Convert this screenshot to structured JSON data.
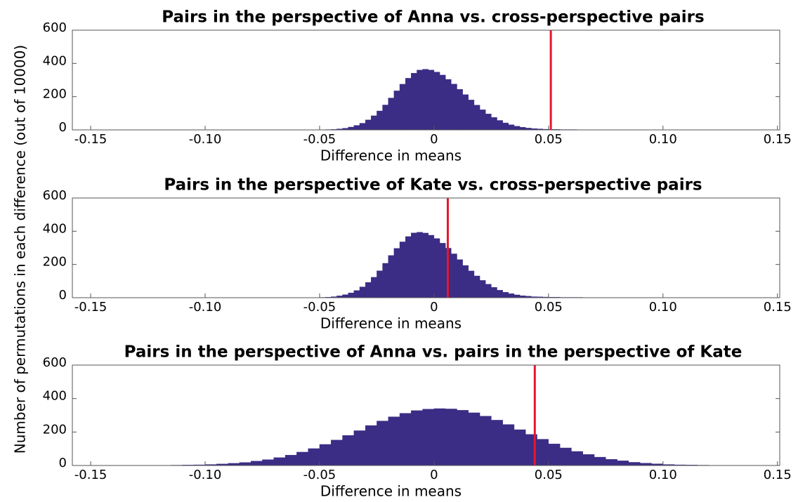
{
  "ylabel": "Number of permutations in each difference (out of 10000)",
  "chart_data": [
    {
      "type": "histogram",
      "title": "Pairs in the perspective of Anna vs. cross-perspective pairs",
      "xlabel": "Difference in means",
      "color": "#3b2c85",
      "bins": [
        -0.05,
        -0.0475,
        -0.045,
        -0.0425,
        -0.04,
        -0.0375,
        -0.035,
        -0.0325,
        -0.03,
        -0.0275,
        -0.025,
        -0.0225,
        -0.02,
        -0.0175,
        -0.015,
        -0.0125,
        -0.01,
        -0.0075,
        -0.005,
        -0.0025,
        0,
        0.0025,
        0.005,
        0.0075,
        0.01,
        0.0125,
        0.015,
        0.0175,
        0.02,
        0.0225,
        0.025,
        0.0275,
        0.03,
        0.0325,
        0.035,
        0.0375,
        0.04,
        0.0425,
        0.045,
        0.0475,
        0.05,
        0.0525,
        0.055,
        0.0575,
        0.06,
        0.0625,
        0.065,
        0.0675,
        0.07,
        0.0725,
        0.075,
        0.0775,
        0.08,
        0.0825,
        0.085,
        0.0875,
        0.09,
        0.0925,
        0.095,
        0.0975,
        0.1,
        0.1025,
        0.105,
        0.1075,
        0.11,
        0.1125,
        0.115,
        0.1175,
        0.12
      ],
      "values": [
        1,
        2,
        3,
        6,
        10,
        17,
        27,
        40,
        60,
        85,
        114,
        150,
        192,
        235,
        275,
        311,
        341,
        360,
        365,
        360,
        348,
        330,
        304,
        276,
        244,
        212,
        180,
        149,
        121,
        96,
        75,
        57,
        42,
        31,
        22,
        16,
        11,
        8,
        6,
        4,
        3,
        3,
        2,
        2,
        2,
        1,
        1,
        1,
        1,
        1,
        1,
        1,
        0,
        0,
        0,
        0,
        0,
        0,
        0,
        0,
        0,
        0,
        0,
        0,
        0,
        0,
        0,
        0
      ],
      "reference_line": {
        "x": 0.051,
        "color": "#e3182d"
      },
      "xlim": [
        -0.158,
        0.151
      ],
      "ylim": [
        0,
        600
      ],
      "xticks": [
        -0.15,
        {
          "value": -0.1,
          "label": "-0.10"
        },
        -0.05,
        0,
        0.05,
        {
          "value": 0.1,
          "label": "0.10"
        },
        0.15
      ],
      "yticks": [
        0,
        200,
        400,
        600
      ]
    },
    {
      "type": "histogram",
      "title": "Pairs in the perspective of Kate vs. cross-perspective pairs",
      "xlabel": "Difference in means",
      "color": "#3b2c85",
      "bins": [
        -0.05,
        -0.0475,
        -0.045,
        -0.0425,
        -0.04,
        -0.0375,
        -0.035,
        -0.0325,
        -0.03,
        -0.0275,
        -0.025,
        -0.0225,
        -0.02,
        -0.0175,
        -0.015,
        -0.0125,
        -0.01,
        -0.0075,
        -0.005,
        -0.0025,
        0,
        0.0025,
        0.005,
        0.0075,
        0.01,
        0.0125,
        0.015,
        0.0175,
        0.02,
        0.0225,
        0.025,
        0.0275,
        0.03,
        0.0325,
        0.035,
        0.0375,
        0.04,
        0.0425,
        0.045,
        0.0475,
        0.05,
        0.0525,
        0.055,
        0.0575,
        0.06,
        0.0625,
        0.065,
        0.0675,
        0.07,
        0.0725,
        0.075,
        0.0775,
        0.08,
        0.0825,
        0.085,
        0.0875,
        0.09,
        0.0925,
        0.095,
        0.0975,
        0.1,
        0.1025,
        0.105,
        0.1075,
        0.11,
        0.1125,
        0.115,
        0.1175,
        0.12
      ],
      "values": [
        2,
        3,
        6,
        11,
        18,
        29,
        43,
        65,
        92,
        123,
        162,
        207,
        254,
        297,
        336,
        368,
        390,
        394,
        389,
        376,
        356,
        328,
        298,
        264,
        229,
        194,
        161,
        131,
        104,
        81,
        62,
        45,
        33,
        24,
        17,
        12,
        9,
        6,
        5,
        4,
        3,
        3,
        2,
        2,
        2,
        2,
        1,
        1,
        1,
        1,
        1,
        1,
        1,
        1,
        1,
        1,
        1,
        1,
        1,
        1,
        1,
        1,
        1,
        0,
        0,
        0,
        0,
        0
      ],
      "reference_line": {
        "x": 0.006,
        "color": "#e3182d"
      },
      "xlim": [
        -0.158,
        0.151
      ],
      "ylim": [
        0,
        600
      ],
      "xticks": [
        -0.15,
        {
          "value": -0.1,
          "label": "-0.10"
        },
        -0.05,
        0,
        0.05,
        {
          "value": 0.1,
          "label": "0.10"
        },
        0.15
      ],
      "yticks": [
        0,
        200,
        400,
        600
      ]
    },
    {
      "type": "histogram",
      "title": "Pairs in the perspective of Anna vs. pairs in the perspective of Kate",
      "xlabel": "Difference in means",
      "color": "#3b2c85",
      "bins": [
        -0.12,
        -0.115,
        -0.11,
        -0.105,
        -0.1,
        -0.095,
        -0.09,
        -0.085,
        -0.08,
        -0.075,
        -0.07,
        -0.065,
        -0.06,
        -0.055,
        -0.05,
        -0.045,
        -0.04,
        -0.035,
        -0.03,
        -0.025,
        -0.02,
        -0.015,
        -0.01,
        -0.005,
        0,
        0.005,
        0.01,
        0.015,
        0.02,
        0.025,
        0.03,
        0.035,
        0.04,
        0.045,
        0.05,
        0.055,
        0.06,
        0.065,
        0.07,
        0.075,
        0.08,
        0.085,
        0.09,
        0.095,
        0.1,
        0.105,
        0.11,
        0.115,
        0.12
      ],
      "values": [
        1,
        2,
        3,
        4,
        6,
        9,
        13,
        18,
        26,
        35,
        47,
        62,
        80,
        101,
        126,
        152,
        180,
        208,
        239,
        266,
        291,
        312,
        328,
        337,
        340,
        338,
        330,
        315,
        295,
        271,
        245,
        214,
        186,
        157,
        129,
        105,
        84,
        66,
        50,
        37,
        28,
        19,
        14,
        10,
        6,
        4,
        3,
        2
      ],
      "reference_line": {
        "x": 0.044,
        "color": "#e3182d"
      },
      "xlim": [
        -0.158,
        0.151
      ],
      "ylim": [
        0,
        600
      ],
      "xticks": [
        -0.15,
        {
          "value": -0.1,
          "label": "-0.10"
        },
        -0.05,
        0,
        0.05,
        {
          "value": 0.1,
          "label": "0.10"
        },
        0.15
      ],
      "yticks": [
        0,
        200,
        400,
        600
      ]
    }
  ]
}
